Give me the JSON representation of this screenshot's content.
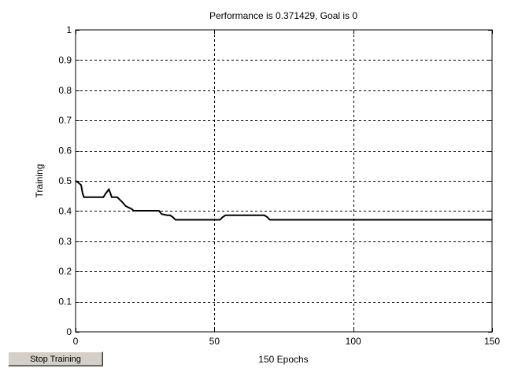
{
  "chart_data": {
    "type": "line",
    "title": "Performance is 0.371429, Goal is 0",
    "xlabel": "150 Epochs",
    "ylabel": "Training",
    "xlim": [
      0,
      150
    ],
    "ylim": [
      0,
      1
    ],
    "xticks": [
      0,
      50,
      100,
      150
    ],
    "yticks": [
      0,
      0.1,
      0.2,
      0.3,
      0.4,
      0.5,
      0.6,
      0.7,
      0.8,
      0.9,
      1
    ],
    "xtick_labels": [
      "0",
      "50",
      "100",
      "150"
    ],
    "ytick_labels": [
      "0",
      "0.1",
      "0.2",
      "0.3",
      "0.4",
      "0.5",
      "0.6",
      "0.7",
      "0.8",
      "0.9",
      "1"
    ],
    "grid": true,
    "line_color": "#000000",
    "series": [
      {
        "x": [
          0,
          1,
          2,
          2.5,
          3,
          10,
          11,
          12,
          12.5,
          13,
          15,
          16,
          17,
          18,
          19,
          20,
          21,
          23,
          24,
          30,
          31,
          33,
          34,
          35,
          36,
          50,
          51,
          52,
          53,
          54,
          60,
          61,
          67,
          68,
          69,
          70,
          150
        ],
        "y": [
          0.5,
          0.494,
          0.486,
          0.46,
          0.446,
          0.446,
          0.46,
          0.472,
          0.46,
          0.446,
          0.446,
          0.437,
          0.428,
          0.417,
          0.412,
          0.408,
          0.401,
          0.401,
          0.401,
          0.401,
          0.39,
          0.386,
          0.386,
          0.38,
          0.371,
          0.371,
          0.371,
          0.371,
          0.38,
          0.386,
          0.386,
          0.386,
          0.386,
          0.386,
          0.38,
          0.371,
          0.371
        ]
      }
    ]
  },
  "controls": {
    "stop_training_label": "Stop Training"
  }
}
